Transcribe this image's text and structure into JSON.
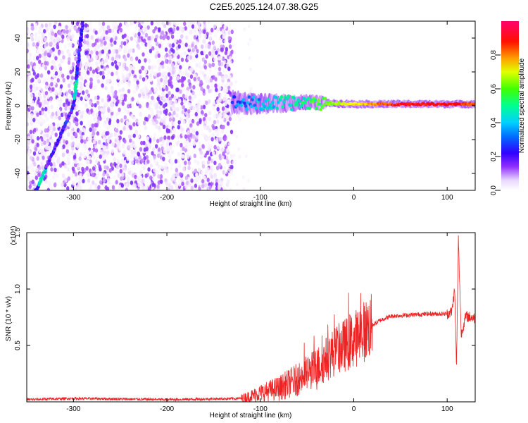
{
  "title": "C2E5.2025.124.07.38.G25",
  "chart_data": [
    {
      "type": "heatmap",
      "xlabel": "Height of straight line (km)",
      "ylabel": "Frequency (Hz)",
      "xlim": [
        -350,
        130
      ],
      "ylim": [
        -50,
        50
      ],
      "xticks": [
        -300,
        -200,
        -100,
        0,
        100
      ],
      "yticks": [
        -40,
        -20,
        0,
        20,
        40
      ],
      "colorbar": {
        "label": "Normalized spectral amplitude",
        "range": [
          0.0,
          1.0
        ],
        "ticks": [
          "0.0",
          "0.2",
          "0.4",
          "0.6",
          "0.8"
        ],
        "tick_values": [
          0.0,
          0.2,
          0.4,
          0.6,
          0.8
        ],
        "colormap": [
          "#ffffff",
          "#f0e0ff",
          "#a040ff",
          "#3000ff",
          "#00c0ff",
          "#00ff80",
          "#80ff00",
          "#ffff00",
          "#ff8000",
          "#ff0000",
          "#ff0060"
        ]
      },
      "features": {
        "broadband_noise_x_range": [
          -350,
          -130
        ],
        "chirp_line": {
          "x": [
            -340,
            -300,
            -290
          ],
          "y": [
            -50,
            0,
            50
          ]
        },
        "carrier_line": {
          "x": [
            -130,
            -100,
            -50,
            0,
            50,
            100,
            130
          ],
          "y": [
            2,
            1,
            2,
            1,
            1,
            1,
            1
          ],
          "amplitude": [
            0.4,
            0.45,
            0.55,
            0.75,
            0.95,
            0.95,
            0.9
          ]
        }
      }
    },
    {
      "type": "line",
      "xlabel": "Height of straight line (km)",
      "ylabel": "SNR (10 * v/v)",
      "y_scale_note": "(x10⁴)",
      "xlim": [
        -350,
        130
      ],
      "ylim": [
        0,
        1.5
      ],
      "xticks": [
        -300,
        -200,
        -100,
        0,
        100
      ],
      "yticks": [
        0.5,
        1.0,
        1.5
      ],
      "ytick_labels": [
        "0.5",
        "1.0",
        "1.5"
      ],
      "color": "#ee2222",
      "series": [
        {
          "x": [
            -350,
            -300,
            -200,
            -120,
            -110,
            -100,
            -80,
            -60,
            -40,
            -20,
            0,
            10,
            20,
            30,
            40,
            60,
            80,
            100,
            105,
            108,
            110,
            112,
            115,
            120,
            130
          ],
          "y": [
            0.02,
            0.03,
            0.02,
            0.03,
            0.05,
            0.08,
            0.12,
            0.2,
            0.3,
            0.45,
            0.55,
            0.62,
            0.68,
            0.73,
            0.76,
            0.77,
            0.78,
            0.78,
            0.8,
            1.0,
            0.3,
            1.45,
            0.6,
            0.76,
            0.74
          ]
        }
      ]
    }
  ]
}
